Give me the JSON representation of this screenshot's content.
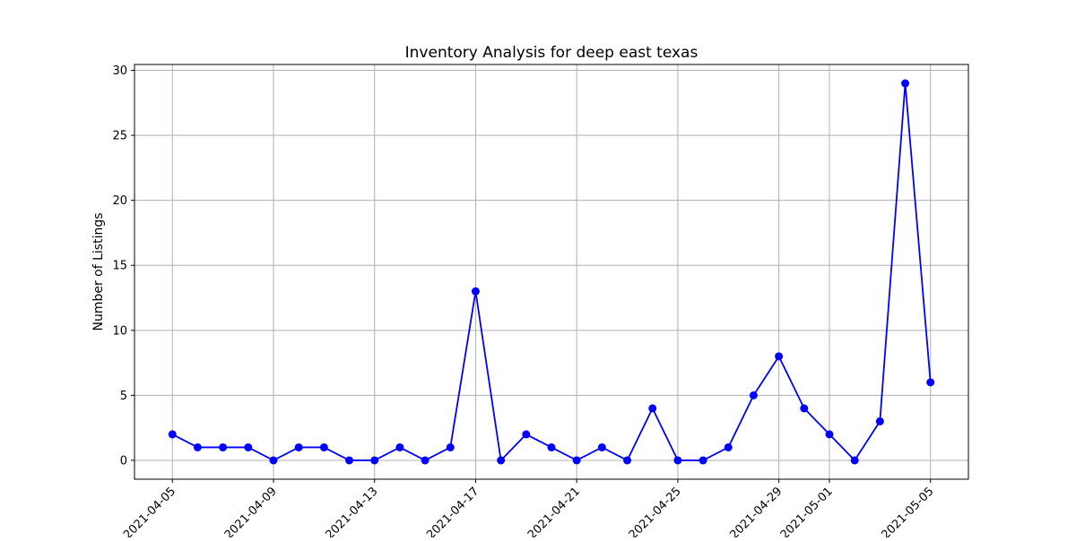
{
  "chart_data": {
    "type": "line",
    "title": "Inventory Analysis for deep east texas",
    "xlabel": "",
    "ylabel": "Number of Listings",
    "x": [
      "2021-04-05",
      "2021-04-06",
      "2021-04-07",
      "2021-04-08",
      "2021-04-09",
      "2021-04-10",
      "2021-04-11",
      "2021-04-12",
      "2021-04-13",
      "2021-04-14",
      "2021-04-15",
      "2021-04-16",
      "2021-04-17",
      "2021-04-18",
      "2021-04-19",
      "2021-04-20",
      "2021-04-21",
      "2021-04-22",
      "2021-04-23",
      "2021-04-24",
      "2021-04-25",
      "2021-04-26",
      "2021-04-27",
      "2021-04-28",
      "2021-04-29",
      "2021-04-30",
      "2021-05-01",
      "2021-05-02",
      "2021-05-03",
      "2021-05-04",
      "2021-05-05"
    ],
    "series": [
      {
        "values": [
          2,
          1,
          1,
          1,
          0,
          1,
          1,
          0,
          0,
          1,
          0,
          1,
          13,
          0,
          2,
          1,
          0,
          1,
          0,
          4,
          0,
          0,
          1,
          5,
          8,
          4,
          2,
          0,
          3,
          29,
          6
        ],
        "color": "#0000ff",
        "marker": "circle"
      }
    ],
    "xticks": [
      "2021-04-05",
      "2021-04-09",
      "2021-04-13",
      "2021-04-17",
      "2021-04-21",
      "2021-04-25",
      "2021-04-29",
      "2021-05-01",
      "2021-05-05"
    ],
    "yticks": [
      0,
      5,
      10,
      15,
      20,
      25,
      30
    ],
    "xlim": [
      "2021-04-03.5",
      "2021-05-06.5"
    ],
    "ylim": [
      -1.45,
      30.45
    ],
    "grid": true,
    "legend": "none"
  }
}
